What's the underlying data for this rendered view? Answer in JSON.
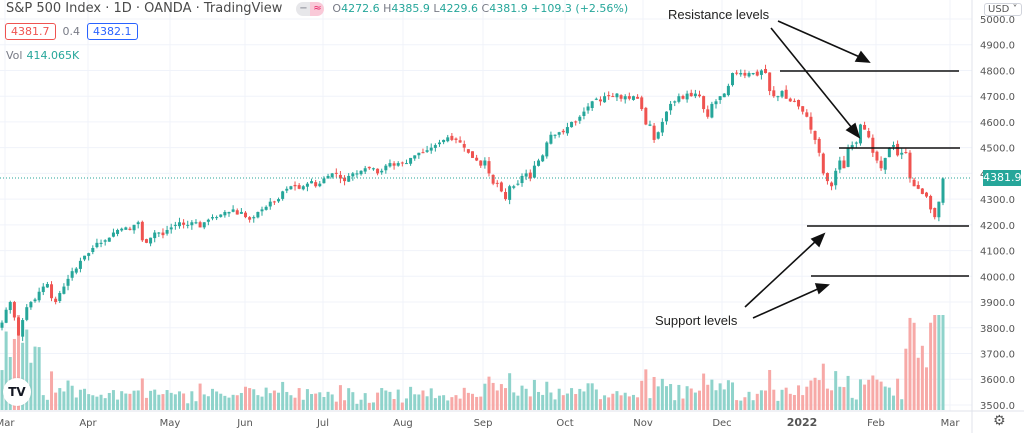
{
  "header": {
    "title": "S&P 500 Index · 1D · OANDA · TradingView",
    "ohlc": {
      "o_label": "O",
      "o": "4272.6",
      "h_label": "H",
      "h": "4385.9",
      "l_label": "L",
      "l": "4229.6",
      "c_label": "C",
      "c": "4381.9",
      "change": "+109.3 (+2.56%)"
    },
    "bid": "4381.7",
    "spread": "0.4",
    "ask": "4382.1",
    "vol_label": "Vol",
    "vol_value": "414.065K"
  },
  "axis": {
    "currency": "USD ˅",
    "last_price": "4381.9",
    "settings_icon": "gear-icon"
  },
  "annotations": {
    "resistance": "Resistance levels",
    "support": "Support levels"
  },
  "colors": {
    "up": "#26a69a",
    "down": "#ef5350",
    "up_vol": "#8fd3cb",
    "down_vol": "#f7a9a7",
    "grid": "#f0f3fa",
    "price_line": "#26a69a"
  },
  "chart_data": {
    "type": "candlestick",
    "title": "S&P 500 Index · 1D · OANDA",
    "xlabel": "",
    "ylabel": "USD",
    "ylim": [
      3500,
      5000
    ],
    "y_ticks": [
      5000,
      4900,
      4800,
      4700,
      4600,
      4500,
      4400,
      4300,
      4200,
      4100,
      4000,
      3900,
      3800,
      3700,
      3600,
      3500
    ],
    "x_ticks": [
      "Mar",
      "Apr",
      "May",
      "Jun",
      "Jul",
      "Aug",
      "Sep",
      "Oct",
      "Nov",
      "Dec",
      "2022",
      "Feb",
      "Mar"
    ],
    "x_tick_pos": [
      5,
      88,
      170,
      245,
      323,
      403,
      483,
      565,
      643,
      722,
      802,
      876,
      950
    ],
    "closes_approx": [
      3820,
      3870,
      3900,
      3840,
      3770,
      3830,
      3880,
      3900,
      3910,
      3940,
      3960,
      3970,
      3915,
      3900,
      3935,
      3960,
      3990,
      4020,
      4030,
      4060,
      4080,
      4090,
      4110,
      4130,
      4130,
      4140,
      4150,
      4170,
      4180,
      4185,
      4190,
      4180,
      4200,
      4210,
      4140,
      4130,
      4150,
      4170,
      4170,
      4160,
      4180,
      4190,
      4200,
      4210,
      4200,
      4200,
      4210,
      4210,
      4190,
      4210,
      4220,
      4230,
      4230,
      4240,
      4250,
      4250,
      4260,
      4240,
      4250,
      4230,
      4220,
      4230,
      4250,
      4260,
      4270,
      4290,
      4290,
      4300,
      4330,
      4340,
      4350,
      4350,
      4340,
      4350,
      4360,
      4370,
      4350,
      4360,
      4380,
      4390,
      4400,
      4400,
      4380,
      4370,
      4390,
      4400,
      4400,
      4410,
      4420,
      4420,
      4420,
      4400,
      4410,
      4430,
      4440,
      4430,
      4440,
      4440,
      4440,
      4460,
      4470,
      4480,
      4480,
      4490,
      4500,
      4510,
      4520,
      4530,
      4540,
      4530,
      4530,
      4520,
      4500,
      4480,
      4460,
      4450,
      4430,
      4450,
      4400,
      4360,
      4360,
      4330,
      4300,
      4350,
      4350,
      4360,
      4390,
      4400,
      4380,
      4430,
      4450,
      4470,
      4520,
      4550,
      4550,
      4560,
      4560,
      4580,
      4600,
      4600,
      4620,
      4640,
      4660,
      4680,
      4690,
      4680,
      4700,
      4700,
      4700,
      4710,
      4690,
      4700,
      4690,
      4700,
      4690,
      4650,
      4590,
      4590,
      4530,
      4560,
      4600,
      4640,
      4670,
      4680,
      4700,
      4690,
      4710,
      4700,
      4710,
      4700,
      4650,
      4620,
      4670,
      4680,
      4700,
      4710,
      4740,
      4790,
      4790,
      4790,
      4780,
      4790,
      4790,
      4780,
      4800,
      4790,
      4720,
      4700,
      4700,
      4720,
      4690,
      4680,
      4680,
      4660,
      4640,
      4620,
      4570,
      4530,
      4480,
      4400,
      4370,
      4350,
      4410,
      4450,
      4420,
      4500,
      4510,
      4520,
      4590,
      4570,
      4540,
      4480,
      4450,
      4420,
      4460,
      4500,
      4510,
      4470,
      4480,
      4480,
      4380,
      4350,
      4340,
      4320,
      4310,
      4260,
      4230,
      4290,
      4380
    ],
    "volumes_approx": []
  }
}
